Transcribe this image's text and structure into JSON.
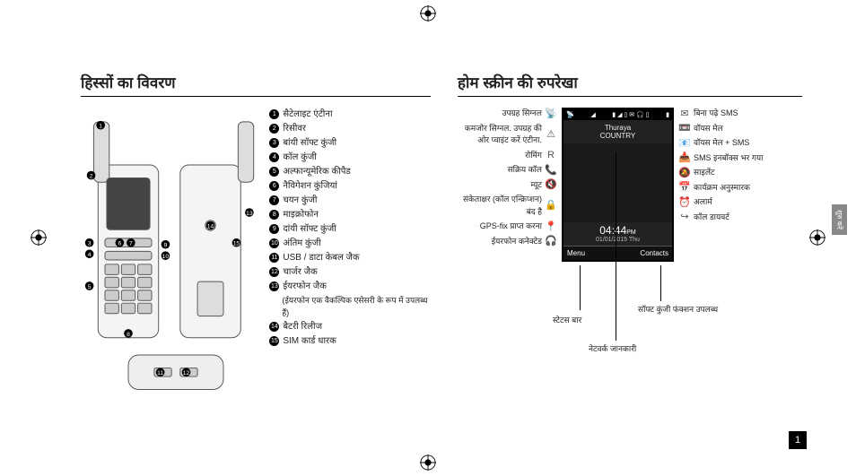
{
  "left_section": {
    "title": "हिस्सों का विवरण",
    "parts": [
      {
        "n": "1",
        "label": "सैटेलाइट एंटीना"
      },
      {
        "n": "2",
        "label": "रिसीवर"
      },
      {
        "n": "3",
        "label": "बांयी सॉफ्ट कुंजी"
      },
      {
        "n": "4",
        "label": "कॉल कुंजी"
      },
      {
        "n": "5",
        "label": "अल्फान्यूमेरिक कीपैड"
      },
      {
        "n": "6",
        "label": "नैविगेशन कुंजियां"
      },
      {
        "n": "7",
        "label": "चयन कुंजी"
      },
      {
        "n": "8",
        "label": "माइक्रोफोन"
      },
      {
        "n": "9",
        "label": "दांयी सॉफ्ट कुंजी"
      },
      {
        "n": "10",
        "label": "अंतिम कुंजी"
      },
      {
        "n": "11",
        "label": "USB / डाटा केबल जैक"
      },
      {
        "n": "12",
        "label": "चार्जर जैक"
      },
      {
        "n": "13",
        "label": "ईयरफोन जैक"
      },
      {
        "n": "14",
        "label": "बैटरी रिलीज"
      },
      {
        "n": "15",
        "label": "SIM कार्ड धारक"
      }
    ],
    "sub_note": "(ईयरफोन एक वैकल्पिक एसेसरी के रूप में उपलब्ध हैं)"
  },
  "right_section": {
    "title": "होम स्क्रीन की रुपरेखा",
    "left_icons": [
      {
        "icon": "📡",
        "text": "उपग्रह सिग्नल"
      },
      {
        "icon": "⚠",
        "text": "कमजोर सिग्नल. उपग्रह की ओर प्वाइंट करें एंटीना."
      },
      {
        "icon": "R",
        "text": "रोमिंग"
      },
      {
        "icon": "📞",
        "text": "सक्रिय कॉल"
      },
      {
        "icon": "🔇",
        "text": "म्यूट"
      },
      {
        "icon": "🔒",
        "text": "संकेताक्षर (कॉल एन्क्रिप्शन) बंद है"
      },
      {
        "icon": "📍",
        "text": "GPS-fix प्राप्त करना"
      },
      {
        "icon": "🎧",
        "text": "ईयरफोन कनेक्टेड"
      }
    ],
    "right_icons": [
      {
        "icon": "✉",
        "text": "बिना पढ़े SMS"
      },
      {
        "icon": "📼",
        "text": "वॉयस मेल"
      },
      {
        "icon": "📧",
        "text": "वॉयस मेल + SMS"
      },
      {
        "icon": "📥",
        "text": "SMS इनबॉक्स भर गया"
      },
      {
        "icon": "🔕",
        "text": "साइलेंट"
      },
      {
        "icon": "📅",
        "text": "कार्यक्रम अनुस्मारक"
      },
      {
        "icon": "⏰",
        "text": "अलार्म"
      },
      {
        "icon": "↪",
        "text": "कॉल डायवर्ट"
      }
    ],
    "screen": {
      "status_icons": "▮ ◢ ▯ ✉ 🎧 ▯",
      "brand": "Thuraya",
      "country": "COUNTRY",
      "time": "04:44",
      "ampm": "PM",
      "date": "01/01/2015  Thu",
      "left_soft": "Menu",
      "right_soft": "Contacts"
    },
    "callouts": {
      "status_bar": "स्टेटस बार",
      "network_info": "नेटवर्क जानकारी",
      "softkey_fn": "सॉफ्ट कुंजी फंक्शन उपलब्ध"
    }
  },
  "side_tab": "शुरु करें",
  "page_number": "1",
  "colors": {
    "text": "#222222",
    "screen_bg": "#222222",
    "badge_bg": "#000000"
  }
}
